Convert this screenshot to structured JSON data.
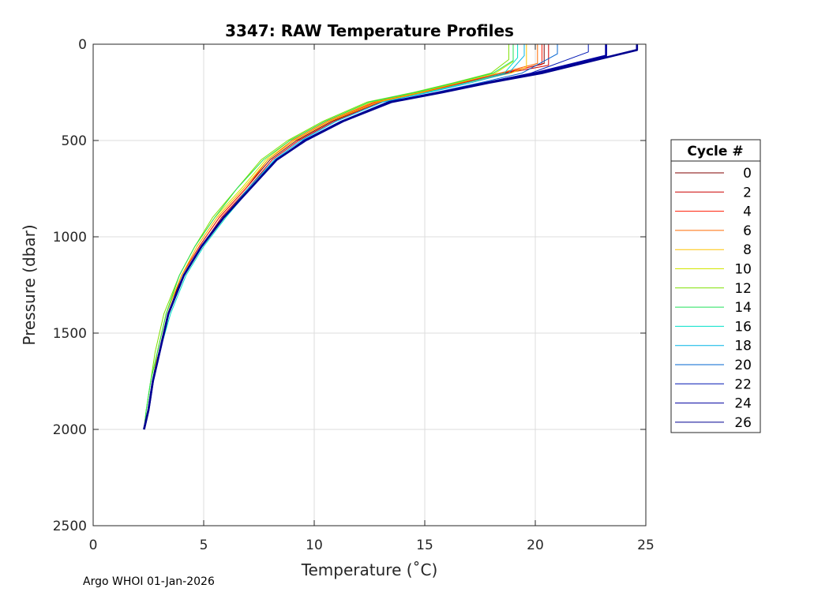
{
  "chart_data": {
    "type": "line",
    "title": "3347: RAW Temperature Profiles",
    "xlabel": "Temperature (˚C)",
    "ylabel": "Pressure (dbar)",
    "xlim": [
      0,
      25
    ],
    "ylim": [
      2500,
      0
    ],
    "y_reversed": true,
    "xticks": [
      "0",
      "5",
      "10",
      "15",
      "20",
      "25"
    ],
    "yticks": [
      "0",
      "500",
      "1000",
      "1500",
      "2000",
      "2500"
    ],
    "grid": true,
    "legend": {
      "title": "Cycle #",
      "position": "right"
    },
    "series": [
      {
        "name": "0",
        "color": "#800000",
        "x": [
          20.4,
          20.4,
          18.6,
          16.8,
          15.0,
          12.9,
          10.8,
          9.2,
          8.0,
          6.9,
          5.7,
          4.8,
          4.0,
          3.4,
          3.0,
          2.7,
          2.5,
          2.3
        ],
        "y": [
          0,
          100,
          150,
          200,
          250,
          300,
          400,
          500,
          600,
          750,
          900,
          1050,
          1200,
          1400,
          1600,
          1750,
          1900,
          2000
        ]
      },
      {
        "name": "2",
        "color": "#cc0000",
        "x": [
          20.6,
          20.6,
          18.7,
          16.9,
          15.1,
          13.0,
          10.9,
          9.3,
          8.1,
          7.0,
          5.8,
          4.9,
          4.1,
          3.4,
          3.0,
          2.7,
          2.5,
          2.3
        ],
        "y": [
          0,
          110,
          150,
          200,
          250,
          300,
          400,
          500,
          600,
          750,
          900,
          1050,
          1200,
          1400,
          1600,
          1750,
          1900,
          2000
        ]
      },
      {
        "name": "4",
        "color": "#ff1a00",
        "x": [
          20.3,
          20.3,
          18.5,
          16.7,
          14.9,
          12.8,
          10.7,
          9.1,
          7.9,
          6.9,
          5.7,
          4.8,
          4.0,
          3.3,
          2.9,
          2.7,
          2.5,
          2.3
        ],
        "y": [
          0,
          105,
          150,
          200,
          250,
          300,
          400,
          500,
          600,
          750,
          900,
          1050,
          1200,
          1400,
          1600,
          1750,
          1900,
          2000
        ]
      },
      {
        "name": "6",
        "color": "#ff6a00",
        "x": [
          20.1,
          20.1,
          18.4,
          16.6,
          14.8,
          12.7,
          10.6,
          9.0,
          7.9,
          6.8,
          5.6,
          4.7,
          4.0,
          3.3,
          2.9,
          2.7,
          2.5,
          2.3
        ],
        "y": [
          0,
          100,
          150,
          200,
          250,
          300,
          400,
          500,
          600,
          750,
          900,
          1050,
          1200,
          1400,
          1600,
          1750,
          1900,
          2000
        ]
      },
      {
        "name": "8",
        "color": "#ffc400",
        "x": [
          19.6,
          19.6,
          18.9,
          16.9,
          15.0,
          12.9,
          10.7,
          9.1,
          7.9,
          6.8,
          5.6,
          4.7,
          4.0,
          3.3,
          2.9,
          2.7,
          2.5,
          2.3
        ],
        "y": [
          0,
          120,
          150,
          200,
          250,
          300,
          400,
          500,
          600,
          750,
          900,
          1050,
          1200,
          1400,
          1600,
          1750,
          1900,
          2000
        ]
      },
      {
        "name": "10",
        "color": "#d2e600",
        "x": [
          19.0,
          19.0,
          18.2,
          16.5,
          14.7,
          12.6,
          10.5,
          8.9,
          7.8,
          6.7,
          5.5,
          4.6,
          3.9,
          3.3,
          2.9,
          2.6,
          2.4,
          2.3
        ],
        "y": [
          0,
          90,
          150,
          200,
          250,
          300,
          400,
          500,
          600,
          750,
          900,
          1050,
          1200,
          1400,
          1600,
          1750,
          1900,
          2000
        ]
      },
      {
        "name": "12",
        "color": "#7fe000",
        "x": [
          18.8,
          18.8,
          18.0,
          16.3,
          14.5,
          12.4,
          10.4,
          8.8,
          7.6,
          6.5,
          5.4,
          4.6,
          3.9,
          3.2,
          2.8,
          2.6,
          2.4,
          2.3
        ],
        "y": [
          0,
          80,
          150,
          200,
          250,
          300,
          400,
          500,
          600,
          750,
          900,
          1050,
          1200,
          1400,
          1600,
          1750,
          1900,
          2000
        ]
      },
      {
        "name": "14",
        "color": "#22e05a",
        "x": [
          19.0,
          19.0,
          18.1,
          16.4,
          14.6,
          12.5,
          10.5,
          8.9,
          7.7,
          6.5,
          5.5,
          4.6,
          3.9,
          3.3,
          2.9,
          2.6,
          2.4,
          2.3
        ],
        "y": [
          0,
          85,
          150,
          200,
          250,
          300,
          400,
          500,
          600,
          750,
          900,
          1050,
          1200,
          1400,
          1600,
          1750,
          1900,
          2000
        ]
      },
      {
        "name": "16",
        "color": "#00e0c8",
        "x": [
          19.2,
          19.2,
          18.6,
          16.9,
          15.1,
          13.1,
          11.0,
          9.4,
          8.2,
          7.1,
          6.0,
          5.0,
          4.2,
          3.5,
          3.0,
          2.7,
          2.5,
          2.3
        ],
        "y": [
          0,
          70,
          150,
          200,
          250,
          300,
          400,
          500,
          600,
          750,
          900,
          1050,
          1200,
          1400,
          1600,
          1750,
          1900,
          2000
        ]
      },
      {
        "name": "18",
        "color": "#00b4e6",
        "x": [
          19.5,
          19.5,
          18.8,
          17.1,
          15.2,
          13.1,
          11.0,
          9.4,
          8.2,
          7.0,
          5.9,
          4.9,
          4.1,
          3.4,
          3.0,
          2.7,
          2.5,
          2.3
        ],
        "y": [
          0,
          60,
          150,
          200,
          250,
          300,
          400,
          500,
          600,
          750,
          900,
          1050,
          1200,
          1400,
          1600,
          1750,
          1900,
          2000
        ]
      },
      {
        "name": "20",
        "color": "#0064d2",
        "x": [
          21.0,
          21.0,
          19.4,
          17.5,
          15.5,
          13.3,
          11.2,
          9.5,
          8.3,
          7.1,
          5.9,
          4.9,
          4.1,
          3.4,
          3.0,
          2.7,
          2.5,
          2.3
        ],
        "y": [
          0,
          50,
          150,
          200,
          250,
          300,
          400,
          500,
          600,
          750,
          900,
          1050,
          1200,
          1400,
          1600,
          1750,
          1900,
          2000
        ]
      },
      {
        "name": "22",
        "color": "#0016b4",
        "x": [
          22.4,
          22.4,
          19.8,
          17.7,
          15.6,
          13.4,
          11.2,
          9.5,
          8.3,
          7.1,
          5.9,
          4.9,
          4.1,
          3.4,
          3.0,
          2.7,
          2.5,
          2.3
        ],
        "y": [
          0,
          40,
          150,
          200,
          250,
          300,
          400,
          500,
          600,
          750,
          900,
          1050,
          1200,
          1400,
          1600,
          1750,
          1900,
          2000
        ]
      },
      {
        "name": "24",
        "color": "#0000a0",
        "x": [
          23.2,
          23.2,
          20.0,
          17.8,
          15.7,
          13.4,
          11.3,
          9.6,
          8.3,
          7.1,
          5.9,
          4.9,
          4.1,
          3.4,
          3.0,
          2.7,
          2.5,
          2.3
        ],
        "y": [
          0,
          60,
          150,
          200,
          250,
          300,
          400,
          500,
          600,
          750,
          900,
          1050,
          1200,
          1400,
          1600,
          1750,
          1900,
          2000
        ]
      },
      {
        "name": "26",
        "color": "#000090",
        "x": [
          24.6,
          24.6,
          20.3,
          17.9,
          15.8,
          13.5,
          11.3,
          9.6,
          8.3,
          7.1,
          5.9,
          4.9,
          4.1,
          3.4,
          3.0,
          2.7,
          2.5,
          2.3
        ],
        "y": [
          0,
          30,
          150,
          200,
          250,
          300,
          400,
          500,
          600,
          750,
          900,
          1050,
          1200,
          1400,
          1600,
          1750,
          1900,
          2000
        ]
      }
    ]
  },
  "footer": {
    "text": "Argo WHOI 01-Jan-2026"
  }
}
